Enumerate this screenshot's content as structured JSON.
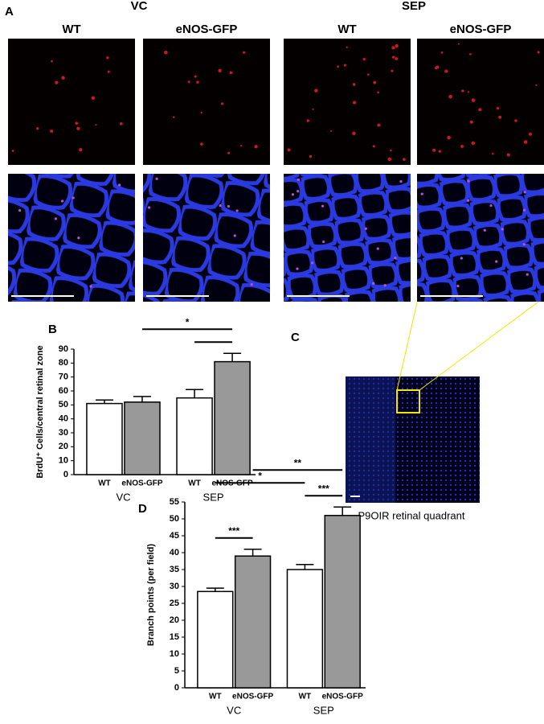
{
  "panel_a": {
    "label": "A",
    "groups": [
      "VC",
      "SEP"
    ],
    "columns": [
      "WT",
      "eNOS-GFP",
      "WT",
      "eNOS-GFP"
    ]
  },
  "chart_data": [
    {
      "type": "bar",
      "panel": "B",
      "y_label": "BrdU⁺ Cells/central retinal zone",
      "categories": [
        "WT",
        "eNOS-GFP",
        "WT",
        "eNOS-GFP"
      ],
      "groups": [
        "VC",
        "SEP"
      ],
      "values": [
        51,
        52,
        55,
        81
      ],
      "errors": [
        2.5,
        4,
        6,
        6
      ],
      "colors": [
        "#ffffff",
        "#999999",
        "#ffffff",
        "#999999"
      ],
      "ylim": [
        0,
        90
      ],
      "yticks": [
        0,
        10,
        20,
        30,
        40,
        50,
        60,
        70,
        80,
        90
      ],
      "comparisons": [
        {
          "bars": [
            2,
            3
          ]
        },
        {
          "bars": [
            1,
            3
          ],
          "label": "*"
        }
      ]
    },
    {
      "type": "bar",
      "panel": "D",
      "y_label": "Branch points (per field)",
      "categories": [
        "WT",
        "eNOS-GFP",
        "WT",
        "eNOS-GFP"
      ],
      "groups": [
        "VC",
        "SEP"
      ],
      "values": [
        28.5,
        39,
        35,
        51
      ],
      "errors": [
        1,
        2,
        1.5,
        2.5
      ],
      "colors": [
        "#ffffff",
        "#999999",
        "#ffffff",
        "#999999"
      ],
      "ylim": [
        0,
        55
      ],
      "yticks": [
        0,
        5,
        10,
        15,
        20,
        25,
        30,
        35,
        40,
        45,
        50,
        55
      ],
      "comparisons": [
        {
          "bars": [
            0,
            1
          ],
          "label": "***"
        },
        {
          "bars": [
            2,
            3
          ],
          "label": "***"
        },
        {
          "bars": [
            0,
            2
          ],
          "label": "*"
        },
        {
          "bars": [
            1,
            3
          ],
          "label": "**"
        }
      ]
    }
  ],
  "panel_c": {
    "label": "C",
    "caption": "P9OIR retinal quadrant"
  }
}
